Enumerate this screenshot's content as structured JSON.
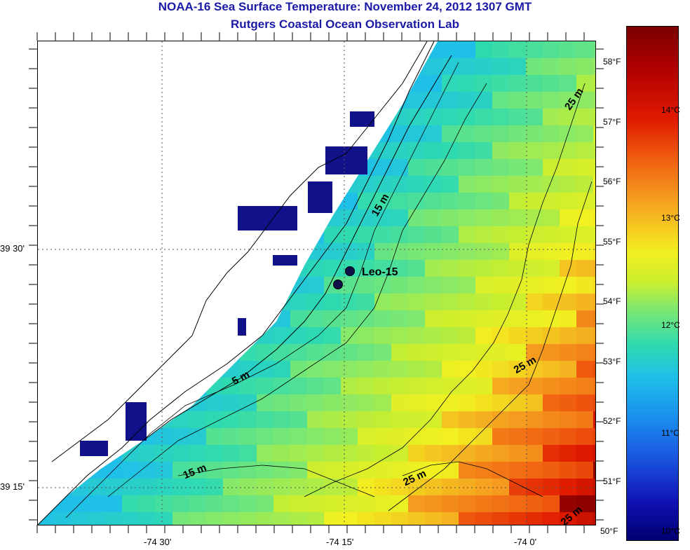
{
  "title": {
    "line1": "NOAA-16 Sea Surface Temperature:  November 24, 2012 1307 GMT",
    "line2": "Rutgers Coastal Ocean Observation Lab"
  },
  "map": {
    "x_ticks": [
      "-74 30'",
      "-74 15'",
      "-74 0'"
    ],
    "y_ticks": [
      "39 30'",
      "39 15'"
    ],
    "station_label": "Leo-15",
    "contour_labels": [
      "5 m",
      "15 m",
      "15 m",
      "25 m",
      "25 m",
      "25 m",
      "25 m"
    ]
  },
  "colorbar": {
    "fahrenheit_ticks": [
      "58°F",
      "57°F",
      "56°F",
      "55°F",
      "54°F",
      "53°F",
      "52°F",
      "51°F",
      "50°F"
    ],
    "celsius_ticks": [
      "14°C",
      "13°C",
      "12°C",
      "11°C",
      "10°C"
    ],
    "colors": {
      "warm": "#b00000",
      "mid": "#f2f020",
      "cool": "#1fc0e8",
      "cold": "#000070"
    }
  }
}
